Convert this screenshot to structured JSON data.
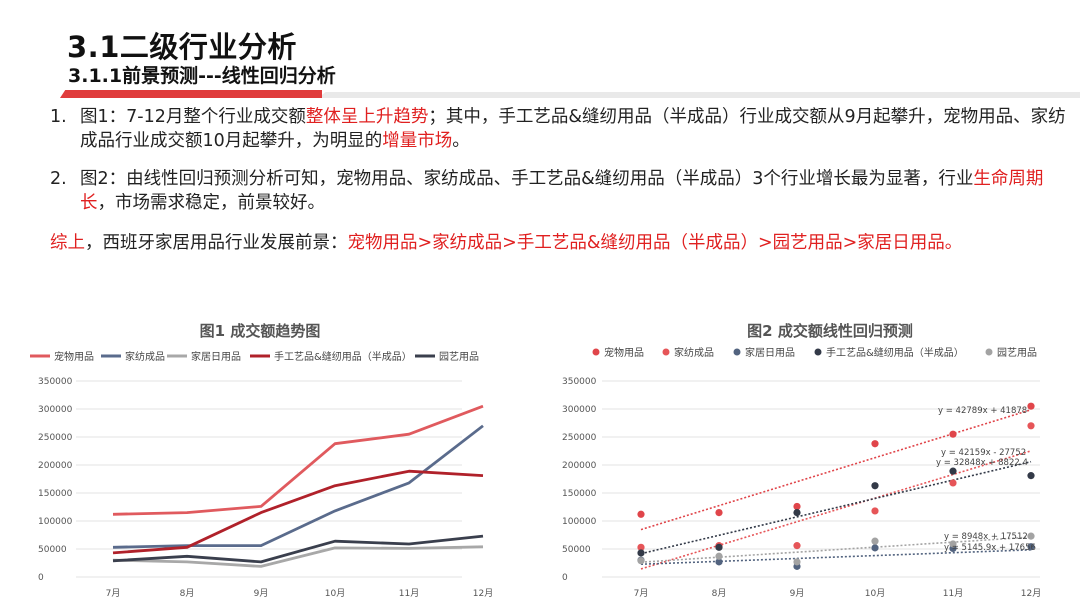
{
  "header": {
    "title": "3.1二级行业分析",
    "subtitle": "3.1.1前景预测---线性回归分析"
  },
  "points": [
    {
      "num": "1.",
      "parts": [
        {
          "t": "图1：7-12月整个行业成交额",
          "hl": false
        },
        {
          "t": "整体呈上升趋势",
          "hl": true
        },
        {
          "t": "；其中，手工艺品&缝纫用品（半成品）行业成交额从9月起攀升，宠物用品、家纺成品行业成交额10月起攀升，为明显的",
          "hl": false
        },
        {
          "t": "增量市场",
          "hl": true
        },
        {
          "t": "。",
          "hl": false
        }
      ]
    },
    {
      "num": "2.",
      "parts": [
        {
          "t": "图2：由线性回归预测分析可知，宠物用品、家纺成品、手工艺品&缝纫用品（半成品）3个行业增长最为显著，行业",
          "hl": false
        },
        {
          "t": "生命周期长",
          "hl": true
        },
        {
          "t": "，市场需求稳定，前景较好。",
          "hl": false
        }
      ]
    }
  ],
  "summary": [
    {
      "t": " 综上",
      "hl": true
    },
    {
      "t": "，西班牙家居用品行业发展前景：",
      "hl": false
    },
    {
      "t": "宠物用品>家纺成品>手工艺品&缝纫用品（半成品）>园艺用品>家居日用品。",
      "hl": true
    }
  ],
  "chart_data": [
    {
      "type": "line",
      "title": "图1 成交额趋势图",
      "categories": [
        "7月",
        "8月",
        "9月",
        "10月",
        "11月",
        "12月"
      ],
      "ylim": [
        0,
        350000
      ],
      "yticks": [
        "0",
        "50000",
        "100000",
        "150000",
        "200000",
        "250000",
        "300000",
        "350000"
      ],
      "grid": true,
      "legend": "top",
      "series": [
        {
          "name": "宠物用品",
          "color": "#e05a5e",
          "values": [
            112000,
            115000,
            126000,
            238000,
            255000,
            305000
          ]
        },
        {
          "name": "家纺成品",
          "color": "#5a6b8c",
          "values": [
            53000,
            56000,
            56000,
            118000,
            168000,
            270000
          ]
        },
        {
          "name": "家居日用品",
          "color": "#a8a8a8",
          "values": [
            30000,
            27000,
            19000,
            52000,
            51000,
            54000
          ]
        },
        {
          "name": "手工艺品&缝纫用品（半成品）",
          "color": "#b0212a",
          "values": [
            43000,
            53000,
            115000,
            163000,
            189000,
            181000
          ]
        },
        {
          "name": "园艺用品",
          "color": "#3a3f4d",
          "values": [
            29000,
            37000,
            27000,
            64000,
            59000,
            73000
          ]
        }
      ]
    },
    {
      "type": "scatter",
      "title": "图2 成交额线性回归预测",
      "categories": [
        "7月",
        "8月",
        "9月",
        "10月",
        "11月",
        "12月"
      ],
      "ylim": [
        0,
        350000
      ],
      "yticks": [
        "0",
        "50000",
        "100000",
        "150000",
        "200000",
        "250000",
        "300000",
        "350000"
      ],
      "grid": true,
      "legend": "top",
      "series": [
        {
          "name": "宠物用品",
          "color": "#e0454a",
          "values": [
            112000,
            115000,
            126000,
            238000,
            255000,
            305000
          ],
          "trend": [
            42789,
            41878
          ],
          "equation": "y = 42789x + 41878"
        },
        {
          "name": "家纺成品",
          "color": "#e65558",
          "values": [
            53000,
            56000,
            56000,
            118000,
            168000,
            270000
          ],
          "trend": [
            42159,
            -27752
          ],
          "equation": "y = 42159x - 27752"
        },
        {
          "name": "家居日用品",
          "color": "#52637f",
          "values": [
            30000,
            27000,
            19000,
            52000,
            51000,
            54000
          ],
          "trend": [
            5145.9,
            17656
          ],
          "equation": "y = 5145.9x + 17656"
        },
        {
          "name": "手工艺品&缝纫用品（半成品）",
          "color": "#333a48",
          "values": [
            43000,
            53000,
            115000,
            163000,
            189000,
            181000
          ],
          "trend": [
            32848,
            8822.4
          ],
          "equation": "y = 32848x + 8822.4"
        },
        {
          "name": "园艺用品",
          "color": "#a3a3a3",
          "values": [
            29000,
            37000,
            27000,
            64000,
            59000,
            73000
          ],
          "trend": [
            8948,
            17512
          ],
          "equation": "y = 8948x + 17512"
        }
      ]
    }
  ]
}
